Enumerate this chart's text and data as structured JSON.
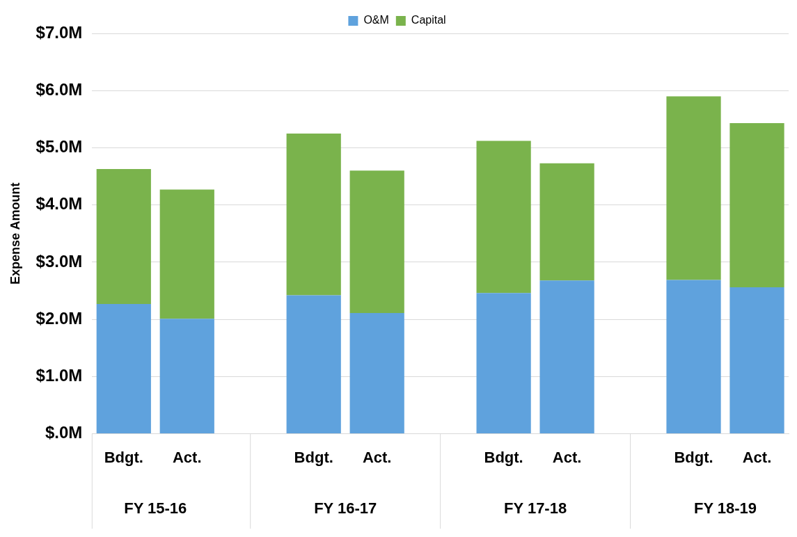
{
  "chart_data": {
    "type": "bar",
    "stacked": true,
    "ylabel": "Expense Amount",
    "categories": [
      "Bdgt.",
      "Act.",
      null,
      "Bdgt.",
      "Act.",
      null,
      "Bdgt.",
      "Act.",
      null,
      "Bdgt.",
      "Act."
    ],
    "series": [
      {
        "name": "O&M",
        "color": "#5fa2dd",
        "values": [
          2.27,
          2.01,
          null,
          2.42,
          2.11,
          null,
          2.46,
          2.68,
          null,
          2.69,
          2.56
        ]
      },
      {
        "name": "Capital",
        "color": "#7ab34c",
        "values": [
          2.36,
          2.26,
          null,
          2.83,
          2.49,
          null,
          2.66,
          2.05,
          null,
          3.21,
          2.87
        ]
      }
    ],
    "annotations": [
      "FY 15-16",
      "FY 16-17",
      "FY 17-18",
      "FY 18-19"
    ],
    "ylim": [
      0,
      7
    ],
    "yticks": [
      {
        "value": 0,
        "label": "$.0M"
      },
      {
        "value": 1,
        "label": "$1.0M"
      },
      {
        "value": 2,
        "label": "$2.0M"
      },
      {
        "value": 3,
        "label": "$3.0M"
      },
      {
        "value": 4,
        "label": "$4.0M"
      },
      {
        "value": 5,
        "label": "$5.0M"
      },
      {
        "value": 6,
        "label": "$6.0M"
      },
      {
        "value": 7,
        "label": "$7.0M"
      }
    ],
    "grid": "y",
    "legend": "top"
  }
}
